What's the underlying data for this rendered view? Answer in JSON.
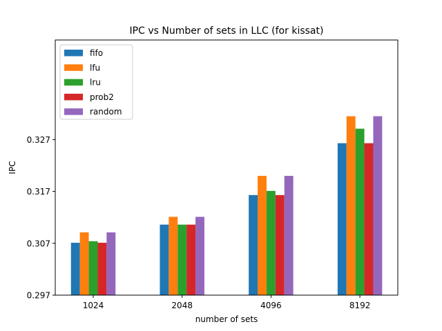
{
  "chart_data": {
    "type": "bar",
    "title": "IPC vs Number of sets in LLC (for kissat)",
    "xlabel": "number of sets",
    "ylabel": "IPC",
    "categories": [
      "1024",
      "2048",
      "4096",
      "8192"
    ],
    "ylim": [
      0.297,
      0.3315
    ],
    "yticks": [
      "0.297",
      "0.307",
      "0.317",
      "0.327"
    ],
    "legend_position": "top-left",
    "grid": false,
    "series": [
      {
        "name": "fifo",
        "color": "#1f77b4",
        "values": [
          0.3071,
          0.3106,
          0.3163,
          0.3263
        ]
      },
      {
        "name": "lfu",
        "color": "#ff7f0e",
        "values": [
          0.3091,
          0.3121,
          0.32,
          0.3315
        ]
      },
      {
        "name": "lru",
        "color": "#2ca02c",
        "values": [
          0.3074,
          0.3106,
          0.3171,
          0.3291
        ]
      },
      {
        "name": "prob2",
        "color": "#d62728",
        "values": [
          0.3071,
          0.3106,
          0.3163,
          0.3263
        ]
      },
      {
        "name": "random",
        "color": "#9467bd",
        "values": [
          0.3091,
          0.3121,
          0.32,
          0.3315
        ]
      }
    ]
  }
}
